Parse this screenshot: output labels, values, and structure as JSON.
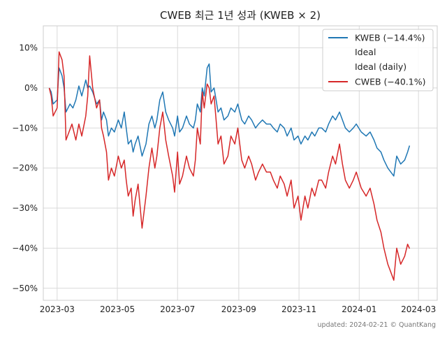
{
  "chart_data": {
    "type": "line",
    "title": "CWEB 최근 1년 성과 (KWEB × 2)",
    "xlabel": "",
    "ylabel": "",
    "x_range": [
      "2023-02-15",
      "2024-03-20"
    ],
    "ylim": [
      -53,
      15.5
    ],
    "x_ticks": [
      {
        "date": "2023-03-01",
        "label": "2023-03"
      },
      {
        "date": "2023-05-01",
        "label": "2023-05"
      },
      {
        "date": "2023-07-01",
        "label": "2023-07"
      },
      {
        "date": "2023-09-01",
        "label": "2023-09"
      },
      {
        "date": "2023-11-01",
        "label": "2023-11"
      },
      {
        "date": "2024-01-01",
        "label": "2024-01"
      },
      {
        "date": "2024-03-01",
        "label": "2024-03"
      }
    ],
    "y_ticks": [
      {
        "value": 10,
        "label": "10%"
      },
      {
        "value": 0,
        "label": "0%"
      },
      {
        "value": -10,
        "label": "−10%"
      },
      {
        "value": -20,
        "label": "−20%"
      },
      {
        "value": -30,
        "label": "−30%"
      },
      {
        "value": -40,
        "label": "−40%"
      },
      {
        "value": -50,
        "label": "−50%"
      }
    ],
    "grid": true,
    "legend_position": "top-right",
    "legend": [
      {
        "label": "KWEB (−14.4%)",
        "color": "#1f77b4",
        "line": true
      },
      {
        "label": "Ideal",
        "color": "",
        "line": false
      },
      {
        "label": "Ideal (daily)",
        "color": "",
        "line": false
      },
      {
        "label": "CWEB (−40.1%)",
        "color": "#d62728",
        "line": true
      }
    ],
    "series": [
      {
        "name": "KWEB (−14.4%)",
        "color": "#1f77b4",
        "points": [
          [
            "2023-02-21",
            0
          ],
          [
            "2023-02-23",
            -1
          ],
          [
            "2023-02-25",
            -4
          ],
          [
            "2023-03-01",
            -3
          ],
          [
            "2023-03-03",
            5
          ],
          [
            "2023-03-06",
            3
          ],
          [
            "2023-03-08",
            0
          ],
          [
            "2023-03-10",
            -6
          ],
          [
            "2023-03-14",
            -4
          ],
          [
            "2023-03-17",
            -5
          ],
          [
            "2023-03-20",
            -3
          ],
          [
            "2023-03-23",
            0.5
          ],
          [
            "2023-03-26",
            -2
          ],
          [
            "2023-03-30",
            2
          ],
          [
            "2023-04-01",
            0
          ],
          [
            "2023-04-03",
            0.5
          ],
          [
            "2023-04-06",
            -1
          ],
          [
            "2023-04-10",
            -4
          ],
          [
            "2023-04-13",
            -3
          ],
          [
            "2023-04-15",
            -8
          ],
          [
            "2023-04-17",
            -6
          ],
          [
            "2023-04-20",
            -8
          ],
          [
            "2023-04-22",
            -12
          ],
          [
            "2023-04-25",
            -10
          ],
          [
            "2023-04-28",
            -11
          ],
          [
            "2023-05-02",
            -8
          ],
          [
            "2023-05-05",
            -10
          ],
          [
            "2023-05-08",
            -6
          ],
          [
            "2023-05-10",
            -10
          ],
          [
            "2023-05-12",
            -14
          ],
          [
            "2023-05-15",
            -13
          ],
          [
            "2023-05-17",
            -16
          ],
          [
            "2023-05-19",
            -14
          ],
          [
            "2023-05-22",
            -12
          ],
          [
            "2023-05-26",
            -17
          ],
          [
            "2023-05-30",
            -14
          ],
          [
            "2023-06-02",
            -9
          ],
          [
            "2023-06-05",
            -7
          ],
          [
            "2023-06-08",
            -10
          ],
          [
            "2023-06-10",
            -8
          ],
          [
            "2023-06-13",
            -3
          ],
          [
            "2023-06-16",
            -1
          ],
          [
            "2023-06-19",
            -6
          ],
          [
            "2023-06-22",
            -8
          ],
          [
            "2023-06-26",
            -10
          ],
          [
            "2023-06-28",
            -12
          ],
          [
            "2023-07-01",
            -7
          ],
          [
            "2023-07-03",
            -11
          ],
          [
            "2023-07-06",
            -10
          ],
          [
            "2023-07-10",
            -7
          ],
          [
            "2023-07-13",
            -9
          ],
          [
            "2023-07-17",
            -10
          ],
          [
            "2023-07-19",
            -8
          ],
          [
            "2023-07-21",
            -4
          ],
          [
            "2023-07-24",
            -6
          ],
          [
            "2023-07-26",
            0
          ],
          [
            "2023-07-28",
            -2
          ],
          [
            "2023-07-31",
            5
          ],
          [
            "2023-08-02",
            6
          ],
          [
            "2023-08-04",
            -1
          ],
          [
            "2023-08-07",
            0
          ],
          [
            "2023-08-09",
            -3
          ],
          [
            "2023-08-11",
            -6
          ],
          [
            "2023-08-14",
            -5
          ],
          [
            "2023-08-17",
            -8
          ],
          [
            "2023-08-21",
            -7
          ],
          [
            "2023-08-24",
            -5
          ],
          [
            "2023-08-28",
            -6
          ],
          [
            "2023-08-31",
            -4
          ],
          [
            "2023-09-04",
            -8
          ],
          [
            "2023-09-07",
            -9
          ],
          [
            "2023-09-11",
            -7
          ],
          [
            "2023-09-14",
            -8
          ],
          [
            "2023-09-18",
            -10
          ],
          [
            "2023-09-21",
            -9
          ],
          [
            "2023-09-25",
            -8
          ],
          [
            "2023-09-29",
            -9
          ],
          [
            "2023-10-03",
            -9
          ],
          [
            "2023-10-06",
            -10
          ],
          [
            "2023-10-10",
            -11
          ],
          [
            "2023-10-13",
            -9
          ],
          [
            "2023-10-17",
            -10
          ],
          [
            "2023-10-20",
            -12
          ],
          [
            "2023-10-24",
            -10
          ],
          [
            "2023-10-27",
            -13
          ],
          [
            "2023-10-31",
            -12
          ],
          [
            "2023-11-03",
            -14
          ],
          [
            "2023-11-07",
            -12
          ],
          [
            "2023-11-10",
            -13
          ],
          [
            "2023-11-14",
            -11
          ],
          [
            "2023-11-17",
            -12
          ],
          [
            "2023-11-21",
            -10
          ],
          [
            "2023-11-24",
            -10
          ],
          [
            "2023-11-28",
            -11
          ],
          [
            "2023-12-01",
            -9
          ],
          [
            "2023-12-05",
            -7
          ],
          [
            "2023-12-08",
            -8
          ],
          [
            "2023-12-12",
            -6
          ],
          [
            "2023-12-15",
            -8
          ],
          [
            "2023-12-18",
            -10
          ],
          [
            "2023-12-22",
            -11
          ],
          [
            "2023-12-26",
            -10
          ],
          [
            "2023-12-29",
            -9
          ],
          [
            "2024-01-03",
            -11
          ],
          [
            "2024-01-08",
            -12
          ],
          [
            "2024-01-12",
            -11
          ],
          [
            "2024-01-16",
            -13
          ],
          [
            "2024-01-19",
            -15
          ],
          [
            "2024-01-23",
            -16
          ],
          [
            "2024-01-26",
            -18
          ],
          [
            "2024-01-30",
            -20
          ],
          [
            "2024-02-02",
            -21
          ],
          [
            "2024-02-05",
            -22
          ],
          [
            "2024-02-08",
            -17
          ],
          [
            "2024-02-12",
            -19
          ],
          [
            "2024-02-16",
            -18
          ],
          [
            "2024-02-19",
            -16
          ],
          [
            "2024-02-21",
            -14.4
          ]
        ]
      },
      {
        "name": "CWEB (−40.1%)",
        "color": "#d62728",
        "points": [
          [
            "2023-02-21",
            0
          ],
          [
            "2023-02-23",
            -2
          ],
          [
            "2023-02-25",
            -7
          ],
          [
            "2023-03-01",
            -5
          ],
          [
            "2023-03-03",
            9
          ],
          [
            "2023-03-06",
            7
          ],
          [
            "2023-03-08",
            3
          ],
          [
            "2023-03-10",
            -13
          ],
          [
            "2023-03-13",
            -11
          ],
          [
            "2023-03-16",
            -9
          ],
          [
            "2023-03-20",
            -13
          ],
          [
            "2023-03-23",
            -9
          ],
          [
            "2023-03-26",
            -12
          ],
          [
            "2023-03-30",
            -7
          ],
          [
            "2023-04-01",
            -2
          ],
          [
            "2023-04-03",
            8
          ],
          [
            "2023-04-06",
            0
          ],
          [
            "2023-04-10",
            -5
          ],
          [
            "2023-04-13",
            -3
          ],
          [
            "2023-04-15",
            -10
          ],
          [
            "2023-04-17",
            -12
          ],
          [
            "2023-04-20",
            -16
          ],
          [
            "2023-04-22",
            -23
          ],
          [
            "2023-04-25",
            -20
          ],
          [
            "2023-04-28",
            -22
          ],
          [
            "2023-05-02",
            -17
          ],
          [
            "2023-05-05",
            -20
          ],
          [
            "2023-05-08",
            -18
          ],
          [
            "2023-05-10",
            -23
          ],
          [
            "2023-05-12",
            -27
          ],
          [
            "2023-05-15",
            -25
          ],
          [
            "2023-05-17",
            -32
          ],
          [
            "2023-05-19",
            -28
          ],
          [
            "2023-05-22",
            -24
          ],
          [
            "2023-05-26",
            -35
          ],
          [
            "2023-05-30",
            -27
          ],
          [
            "2023-06-02",
            -20
          ],
          [
            "2023-06-05",
            -15
          ],
          [
            "2023-06-08",
            -20
          ],
          [
            "2023-06-10",
            -17
          ],
          [
            "2023-06-13",
            -10
          ],
          [
            "2023-06-16",
            -6
          ],
          [
            "2023-06-19",
            -13
          ],
          [
            "2023-06-22",
            -17
          ],
          [
            "2023-06-26",
            -22
          ],
          [
            "2023-06-28",
            -26
          ],
          [
            "2023-07-01",
            -16
          ],
          [
            "2023-07-03",
            -24
          ],
          [
            "2023-07-06",
            -22
          ],
          [
            "2023-07-10",
            -17
          ],
          [
            "2023-07-13",
            -20
          ],
          [
            "2023-07-17",
            -22
          ],
          [
            "2023-07-19",
            -18
          ],
          [
            "2023-07-21",
            -10
          ],
          [
            "2023-07-24",
            -14
          ],
          [
            "2023-07-26",
            -1
          ],
          [
            "2023-07-28",
            -5
          ],
          [
            "2023-07-31",
            1
          ],
          [
            "2023-08-02",
            0
          ],
          [
            "2023-08-04",
            -4
          ],
          [
            "2023-08-07",
            -2
          ],
          [
            "2023-08-09",
            -8
          ],
          [
            "2023-08-11",
            -14
          ],
          [
            "2023-08-14",
            -12
          ],
          [
            "2023-08-17",
            -19
          ],
          [
            "2023-08-21",
            -17
          ],
          [
            "2023-08-24",
            -12
          ],
          [
            "2023-08-28",
            -14
          ],
          [
            "2023-08-31",
            -10
          ],
          [
            "2023-09-04",
            -18
          ],
          [
            "2023-09-07",
            -20
          ],
          [
            "2023-09-11",
            -17
          ],
          [
            "2023-09-14",
            -19
          ],
          [
            "2023-09-18",
            -23
          ],
          [
            "2023-09-21",
            -21
          ],
          [
            "2023-09-25",
            -19
          ],
          [
            "2023-09-29",
            -21
          ],
          [
            "2023-10-03",
            -21
          ],
          [
            "2023-10-06",
            -23
          ],
          [
            "2023-10-10",
            -25
          ],
          [
            "2023-10-13",
            -22
          ],
          [
            "2023-10-17",
            -24
          ],
          [
            "2023-10-20",
            -27
          ],
          [
            "2023-10-24",
            -23
          ],
          [
            "2023-10-27",
            -30
          ],
          [
            "2023-10-31",
            -27
          ],
          [
            "2023-11-03",
            -33
          ],
          [
            "2023-11-07",
            -27
          ],
          [
            "2023-11-10",
            -30
          ],
          [
            "2023-11-14",
            -25
          ],
          [
            "2023-11-17",
            -27
          ],
          [
            "2023-11-21",
            -23
          ],
          [
            "2023-11-24",
            -23
          ],
          [
            "2023-11-28",
            -25
          ],
          [
            "2023-12-01",
            -21
          ],
          [
            "2023-12-05",
            -17
          ],
          [
            "2023-12-08",
            -19
          ],
          [
            "2023-12-12",
            -14
          ],
          [
            "2023-12-15",
            -19
          ],
          [
            "2023-12-18",
            -23
          ],
          [
            "2023-12-22",
            -25
          ],
          [
            "2023-12-26",
            -23
          ],
          [
            "2023-12-29",
            -21
          ],
          [
            "2024-01-03",
            -25
          ],
          [
            "2024-01-08",
            -27
          ],
          [
            "2024-01-12",
            -25
          ],
          [
            "2024-01-16",
            -29
          ],
          [
            "2024-01-19",
            -33
          ],
          [
            "2024-01-23",
            -36
          ],
          [
            "2024-01-26",
            -40
          ],
          [
            "2024-01-30",
            -44
          ],
          [
            "2024-02-02",
            -46
          ],
          [
            "2024-02-05",
            -48
          ],
          [
            "2024-02-08",
            -40
          ],
          [
            "2024-02-12",
            -44
          ],
          [
            "2024-02-16",
            -42
          ],
          [
            "2024-02-19",
            -39
          ],
          [
            "2024-02-21",
            -40.1
          ]
        ]
      }
    ],
    "footer": "updated: 2024-02-21 © QuantKang"
  }
}
